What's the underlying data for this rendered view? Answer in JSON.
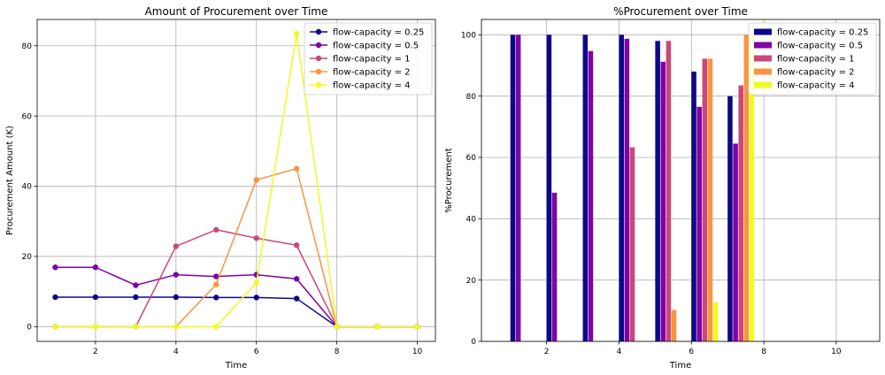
{
  "chart_data": [
    {
      "type": "line",
      "title": "Amount of Procurement over Time",
      "xlabel": "Time",
      "ylabel": "Procurement Amount (K)",
      "xlim": [
        0.55,
        10.45
      ],
      "ylim": [
        -4.2,
        87.5
      ],
      "xticks": [
        2,
        4,
        6,
        8,
        10
      ],
      "yticks": [
        0,
        20,
        40,
        60,
        80
      ],
      "grid": true,
      "legend": "top-right",
      "x": [
        1,
        2,
        3,
        4,
        5,
        6,
        7,
        8,
        9,
        10
      ],
      "series": [
        {
          "name": "flow-capacity = 0.25",
          "color": "#0d0887",
          "values": [
            8.4,
            8.4,
            8.4,
            8.4,
            8.3,
            8.3,
            8.0,
            0,
            0,
            0
          ]
        },
        {
          "name": "flow-capacity = 0.5",
          "color": "#7e03a8",
          "values": [
            16.9,
            16.9,
            11.8,
            14.8,
            14.3,
            14.8,
            13.6,
            0,
            0,
            0
          ]
        },
        {
          "name": "flow-capacity = 1",
          "color": "#cc4778",
          "values": [
            0,
            0,
            0,
            22.9,
            27.6,
            25.2,
            23.2,
            0,
            0,
            0
          ]
        },
        {
          "name": "flow-capacity = 2",
          "color": "#f89540",
          "values": [
            0,
            0,
            0,
            0,
            12.0,
            41.8,
            45.0,
            0,
            0,
            0
          ]
        },
        {
          "name": "flow-capacity = 4",
          "color": "#f0f921",
          "values": [
            0,
            0,
            0,
            0,
            0,
            12.5,
            83.5,
            0,
            0,
            0
          ]
        }
      ]
    },
    {
      "type": "bar",
      "title": "%Procurement over Time",
      "xlabel": "Time",
      "ylabel": "%Procurement",
      "xlim": [
        0.2,
        11.2
      ],
      "ylim": [
        0,
        105
      ],
      "xticks": [
        2,
        4,
        6,
        8,
        10
      ],
      "yticks": [
        0,
        20,
        40,
        60,
        80,
        100
      ],
      "grid": true,
      "legend": "top-right",
      "x": [
        1,
        2,
        3,
        4,
        5,
        6,
        7,
        8,
        9,
        10
      ],
      "series": [
        {
          "name": "flow-capacity = 0.25",
          "color": "#0d0887",
          "values": [
            100,
            100,
            100,
            100,
            98,
            88,
            80,
            0,
            0,
            0
          ]
        },
        {
          "name": "flow-capacity = 0.5",
          "color": "#7e03a8",
          "values": [
            100,
            48.5,
            94.7,
            98.7,
            91.2,
            76.5,
            64.5,
            0,
            0,
            0
          ]
        },
        {
          "name": "flow-capacity = 1",
          "color": "#cc4778",
          "values": [
            0,
            0,
            0,
            63.3,
            98,
            92.2,
            83.5,
            0,
            0,
            0
          ]
        },
        {
          "name": "flow-capacity = 2",
          "color": "#f89540",
          "values": [
            0,
            0,
            0,
            0,
            10.2,
            92.2,
            100,
            0,
            0,
            0
          ]
        },
        {
          "name": "flow-capacity = 4",
          "color": "#f0f921",
          "values": [
            0,
            0,
            0,
            0,
            0,
            12.7,
            100,
            0,
            0,
            0
          ]
        }
      ]
    }
  ]
}
